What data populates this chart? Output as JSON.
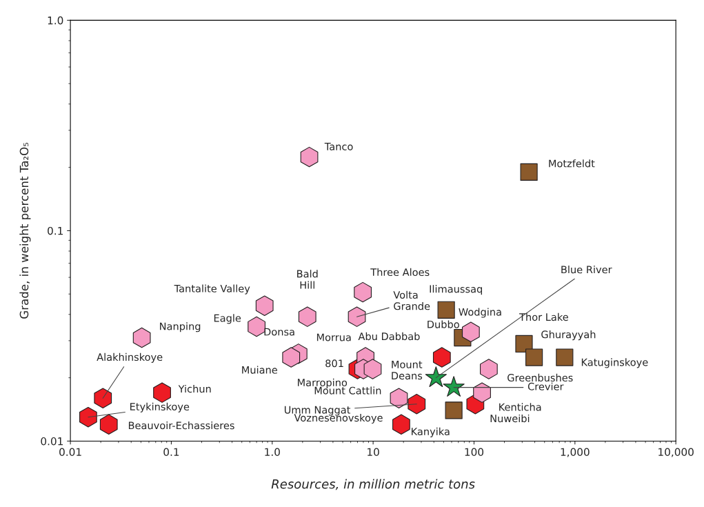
{
  "chart_data": {
    "type": "scatter",
    "xlabel": "Resources, in million metric tons",
    "ylabel": "Grade, in weight percent Ta₂O₅",
    "log": "xy",
    "grid": false,
    "xlim": [
      0.01,
      10000
    ],
    "xticks": [
      0.01,
      0.1,
      {
        "value": 1,
        "label": "1.0"
      },
      10,
      100,
      {
        "value": 1000,
        "label": "1,000"
      },
      {
        "value": 10000,
        "label": "10,000"
      }
    ],
    "ylim": [
      0.01,
      1
    ],
    "yticks": [
      0.01,
      0.1,
      {
        "value": 1,
        "label": "1.0"
      }
    ],
    "series": [
      {
        "color": "#f49ac2",
        "x": [
          2.33,
          0.84,
          0.7,
          2.23,
          0.051,
          7.9,
          6.9,
          1.82,
          1.54,
          8.4,
          8.0,
          9.9,
          93,
          140,
          18,
          120
        ],
        "values": [
          0.224,
          0.044,
          0.035,
          0.039,
          0.031,
          0.051,
          0.039,
          0.026,
          0.025,
          0.025,
          0.022,
          0.022,
          0.033,
          0.022,
          0.016,
          0.017
        ]
      },
      {
        "color": "#ed1c24",
        "x": [
          0.021,
          0.015,
          0.024,
          0.081,
          7.0,
          48,
          27,
          19,
          103
        ],
        "values": [
          0.016,
          0.013,
          0.012,
          0.017,
          0.022,
          0.025,
          0.015,
          0.012,
          0.015
        ]
      },
      {
        "color": "#8b5a2b",
        "marker": "square",
        "x": [
          350,
          53,
          77,
          313,
          394,
          790,
          63
        ],
        "values": [
          0.19,
          0.042,
          0.031,
          0.029,
          0.025,
          0.025,
          0.014
        ]
      },
      {
        "color": "#1e9e4a",
        "marker": "star",
        "x": [
          42,
          63
        ],
        "values": [
          0.02,
          0.018
        ]
      }
    ],
    "annotations": [
      {
        "text": "Tanco",
        "x": 2.33,
        "y": 0.224
      },
      {
        "text": "Motzfeldt",
        "x": 350,
        "y": 0.19
      },
      {
        "text": "Tantalite Valley",
        "x": 0.84,
        "y": 0.044
      },
      {
        "text": "Bald\nHill",
        "x": 2.23,
        "y": 0.039
      },
      {
        "text": "Eagle",
        "x": 0.7,
        "y": 0.035
      },
      {
        "text": "Nanping",
        "x": 0.051,
        "y": 0.031
      },
      {
        "text": "Three Aloes",
        "x": 7.9,
        "y": 0.051
      },
      {
        "text": "Volta\nGrande",
        "x": 6.9,
        "y": 0.039
      },
      {
        "text": "Donsa",
        "x": 1.82,
        "y": 0.026
      },
      {
        "text": "Muiane",
        "x": 1.54,
        "y": 0.025
      },
      {
        "text": "Morrua",
        "x": 8.4,
        "y": 0.025
      },
      {
        "text": "Abu Dabbab",
        "x": 48,
        "y": 0.025
      },
      {
        "text": "801",
        "x": 7.0,
        "y": 0.022
      },
      {
        "text": "Marropino",
        "x": 8.0,
        "y": 0.022
      },
      {
        "text": "Mount\nDeans",
        "x": 9.9,
        "y": 0.022
      },
      {
        "text": "Wodgina",
        "x": 93,
        "y": 0.033
      },
      {
        "text": "Ilimaussaq",
        "x": 53,
        "y": 0.042
      },
      {
        "text": "Dubbo",
        "x": 77,
        "y": 0.031
      },
      {
        "text": "Blue River",
        "x": 42,
        "y": 0.02
      },
      {
        "text": "Thor Lake",
        "x": 313,
        "y": 0.029
      },
      {
        "text": "Ghurayyah",
        "x": 394,
        "y": 0.025
      },
      {
        "text": "Katuginskoye",
        "x": 790,
        "y": 0.025
      },
      {
        "text": "Greenbushes",
        "x": 140,
        "y": 0.022
      },
      {
        "text": "Crevier",
        "x": 63,
        "y": 0.018
      },
      {
        "text": "Kenticha",
        "x": 120,
        "y": 0.017
      },
      {
        "text": "Nuweibi",
        "x": 103,
        "y": 0.015
      },
      {
        "text": "Kanyika",
        "x": 63,
        "y": 0.014
      },
      {
        "text": "Alakhinskoye",
        "x": 0.021,
        "y": 0.016
      },
      {
        "text": "Yichun",
        "x": 0.081,
        "y": 0.017
      },
      {
        "text": "Etykinskoye",
        "x": 0.015,
        "y": 0.013
      },
      {
        "text": "Beauvoir-Echassieres",
        "x": 0.024,
        "y": 0.012
      },
      {
        "text": "Mount Cattlin",
        "x": 18,
        "y": 0.016
      },
      {
        "text": "Umm Naggat",
        "x": 27,
        "y": 0.015
      },
      {
        "text": "Voznesenovskoye",
        "x": 19,
        "y": 0.012
      }
    ]
  }
}
